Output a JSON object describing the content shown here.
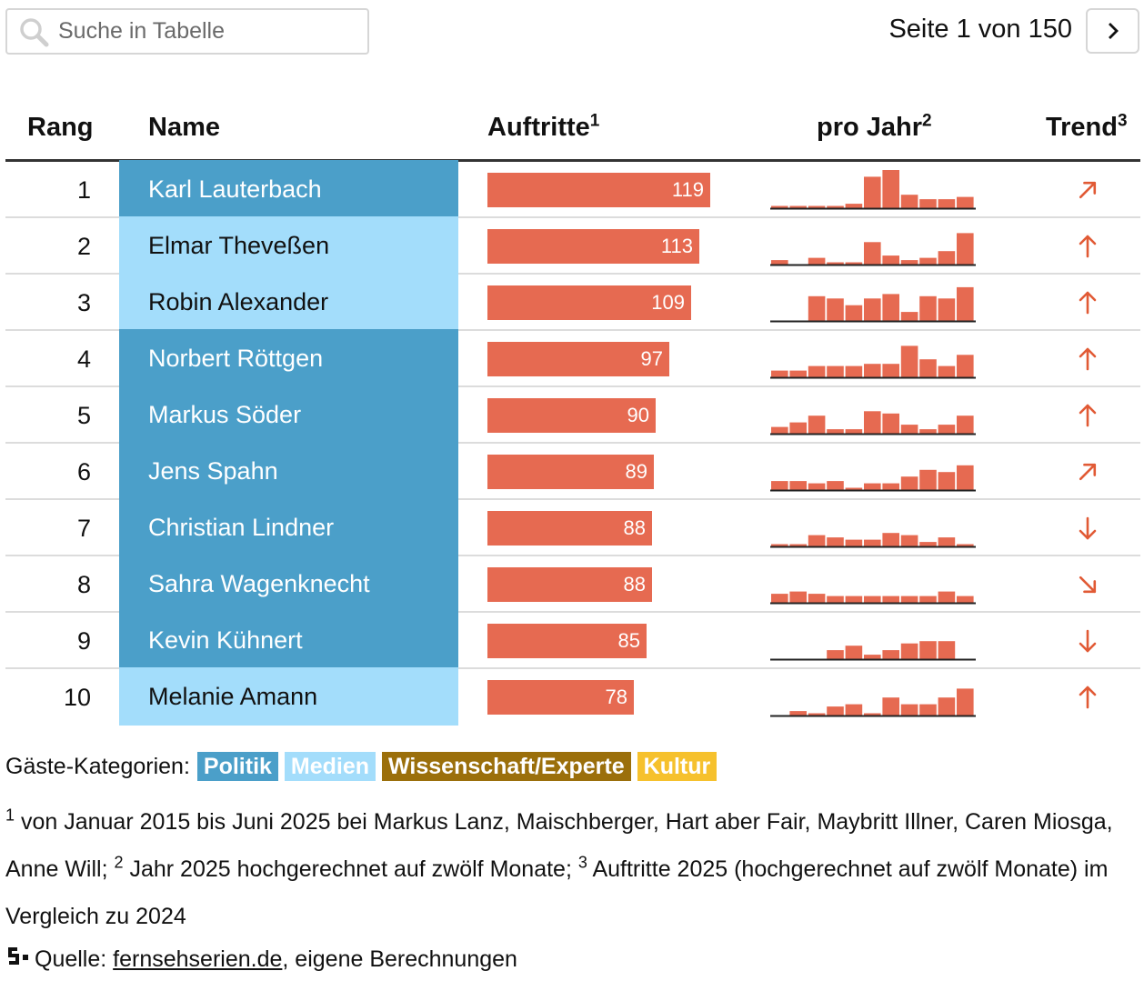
{
  "search": {
    "placeholder": "Suche in Tabelle"
  },
  "pager": {
    "text": "Seite 1 von 150",
    "next_icon": "chevron-right-icon"
  },
  "header": {
    "rang": "Rang",
    "name": "Name",
    "auftritte": "Auftritte",
    "auftritte_sup": "1",
    "pro_jahr": "pro Jahr",
    "pro_jahr_sup": "2",
    "trend": "Trend",
    "trend_sup": "3"
  },
  "colors": {
    "politik": "#4b9fc9",
    "medien": "#a3ddfb",
    "wissenschaft": "#9b6f0b",
    "kultur": "#f6c12d",
    "bar": "#e66a51"
  },
  "max_auftritte": 119,
  "rows": [
    {
      "rank": "1",
      "name": "Karl Lauterbach",
      "category": "politik",
      "auftritte": 119,
      "trend": "up-right",
      "per_year": [
        1,
        1,
        1,
        1,
        2,
        14,
        17,
        6,
        4,
        4,
        5
      ]
    },
    {
      "rank": "2",
      "name": "Elmar Theveßen",
      "category": "medien",
      "auftritte": 113,
      "trend": "up",
      "per_year": [
        2,
        0,
        3,
        1,
        1,
        10,
        4,
        2,
        3,
        6,
        14
      ]
    },
    {
      "rank": "3",
      "name": "Robin Alexander",
      "category": "medien",
      "auftritte": 109,
      "trend": "up",
      "per_year": [
        0,
        0,
        11,
        10,
        7,
        10,
        12,
        4,
        11,
        10,
        15
      ]
    },
    {
      "rank": "4",
      "name": "Norbert Röttgen",
      "category": "politik",
      "auftritte": 97,
      "trend": "up",
      "per_year": [
        3,
        3,
        5,
        5,
        5,
        6,
        6,
        14,
        8,
        5,
        10
      ]
    },
    {
      "rank": "5",
      "name": "Markus Söder",
      "category": "politik",
      "auftritte": 90,
      "trend": "up",
      "per_year": [
        3,
        5,
        8,
        2,
        2,
        10,
        9,
        4,
        2,
        4,
        8
      ]
    },
    {
      "rank": "6",
      "name": "Jens Spahn",
      "category": "politik",
      "auftritte": 89,
      "trend": "up-right",
      "per_year": [
        4,
        4,
        3,
        4,
        1,
        3,
        3,
        6,
        9,
        8,
        11
      ]
    },
    {
      "rank": "7",
      "name": "Christian Lindner",
      "category": "politik",
      "auftritte": 88,
      "trend": "down",
      "per_year": [
        1,
        1,
        5,
        4,
        3,
        3,
        6,
        5,
        2,
        4,
        1
      ]
    },
    {
      "rank": "8",
      "name": "Sahra Wagenknecht",
      "category": "politik",
      "auftritte": 88,
      "trend": "down-right",
      "per_year": [
        4,
        5,
        4,
        3,
        3,
        3,
        3,
        3,
        3,
        5,
        3
      ]
    },
    {
      "rank": "9",
      "name": "Kevin Kühnert",
      "category": "politik",
      "auftritte": 85,
      "trend": "down",
      "per_year": [
        0,
        0,
        0,
        4,
        6,
        2,
        4,
        7,
        8,
        8,
        0
      ]
    },
    {
      "rank": "10",
      "name": "Melanie Amann",
      "category": "medien",
      "auftritte": 78,
      "trend": "up",
      "per_year": [
        0,
        2,
        1,
        4,
        5,
        1,
        8,
        5,
        5,
        8,
        12
      ]
    }
  ],
  "legend": {
    "label": "Gäste-Kategorien:",
    "items": [
      "Politik",
      "Medien",
      "Wissenschaft/Experte",
      "Kultur"
    ]
  },
  "footnote": {
    "n1": "1",
    "t1": "von Januar 2015 bis Juni 2025 bei Markus Lanz, Maischberger, Hart aber Fair, Maybritt Illner, Caren Miosga, Anne Will;",
    "n2": "2",
    "t2": "Jahr 2025 hochgerechnet auf zwölf Monate;",
    "n3": "3",
    "t3": "Auftritte 2025 (hochgerechnet auf zwölf Monate) im Vergleich zu 2024"
  },
  "source": {
    "prefix": "Quelle:",
    "link": "fernsehserien.de",
    "suffix": ", eigene Berechnungen"
  }
}
